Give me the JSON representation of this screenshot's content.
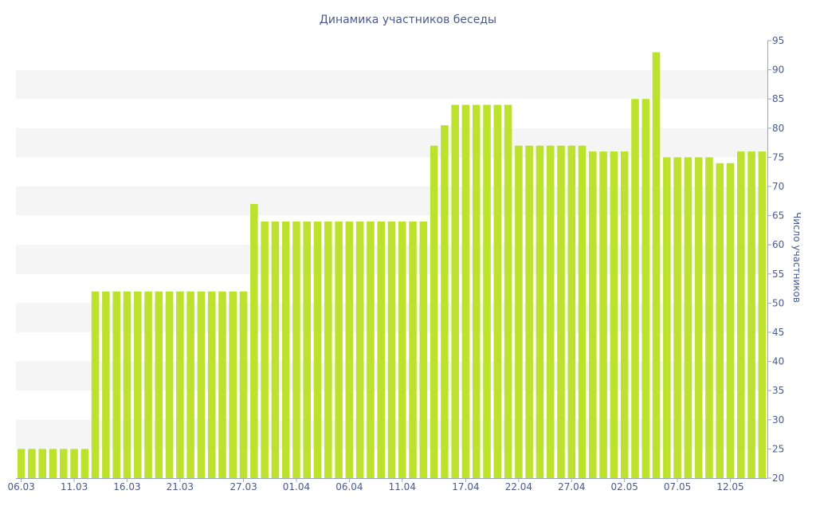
{
  "colors": {
    "bar": "#bde22e",
    "text": "#4a5a8a",
    "band": "#f5f5f5",
    "axis": "#9aa6c8"
  },
  "chart_data": {
    "type": "bar",
    "title": "Динамика участников беседы",
    "xlabel": "",
    "ylabel": "Число участников",
    "ylim": [
      20,
      95
    ],
    "yticks": [
      20,
      25,
      30,
      35,
      40,
      45,
      50,
      55,
      60,
      65,
      70,
      75,
      80,
      85,
      90,
      95
    ],
    "y_axis_position": "right",
    "grid": "alternating-bands",
    "legend": "none",
    "xtick_labels": [
      "06.03",
      "11.03",
      "16.03",
      "21.03",
      "27.03",
      "01.04",
      "06.04",
      "11.04",
      "17.04",
      "22.04",
      "27.04",
      "02.05",
      "07.05",
      "12.05"
    ],
    "xtick_dates": [
      "2024-03-06",
      "2024-03-11",
      "2024-03-16",
      "2024-03-21",
      "2024-03-27",
      "2024-04-01",
      "2024-04-06",
      "2024-04-11",
      "2024-04-17",
      "2024-04-22",
      "2024-04-27",
      "2024-05-02",
      "2024-05-07",
      "2024-05-12"
    ],
    "x": [
      "2024-03-06",
      "2024-03-07",
      "2024-03-08",
      "2024-03-09",
      "2024-03-10",
      "2024-03-11",
      "2024-03-12",
      "2024-03-13",
      "2024-03-14",
      "2024-03-15",
      "2024-03-16",
      "2024-03-17",
      "2024-03-18",
      "2024-03-19",
      "2024-03-20",
      "2024-03-21",
      "2024-03-22",
      "2024-03-23",
      "2024-03-24",
      "2024-03-25",
      "2024-03-26",
      "2024-03-27",
      "2024-03-28",
      "2024-03-29",
      "2024-03-30",
      "2024-03-31",
      "2024-04-01",
      "2024-04-02",
      "2024-04-03",
      "2024-04-04",
      "2024-04-05",
      "2024-04-06",
      "2024-04-07",
      "2024-04-08",
      "2024-04-09",
      "2024-04-10",
      "2024-04-11",
      "2024-04-12",
      "2024-04-13",
      "2024-04-14",
      "2024-04-15",
      "2024-04-16",
      "2024-04-17",
      "2024-04-18",
      "2024-04-19",
      "2024-04-20",
      "2024-04-21",
      "2024-04-22",
      "2024-04-23",
      "2024-04-24",
      "2024-04-25",
      "2024-04-26",
      "2024-04-27",
      "2024-04-28",
      "2024-04-29",
      "2024-04-30",
      "2024-05-01",
      "2024-05-02",
      "2024-05-03",
      "2024-05-04",
      "2024-05-05",
      "2024-05-06",
      "2024-05-07",
      "2024-05-08",
      "2024-05-09",
      "2024-05-10",
      "2024-05-11",
      "2024-05-12",
      "2024-05-13",
      "2024-05-14",
      "2024-05-15"
    ],
    "values": [
      25,
      25,
      25,
      25,
      25,
      25,
      25,
      52,
      52,
      52,
      52,
      52,
      52,
      52,
      52,
      52,
      52,
      52,
      52,
      52,
      52,
      52,
      67,
      64,
      64,
      64,
      64,
      64,
      64,
      64,
      64,
      64,
      64,
      64,
      64,
      64,
      64,
      64,
      64,
      77,
      80.5,
      84,
      84,
      84,
      84,
      84,
      84,
      77,
      77,
      77,
      77,
      77,
      77,
      77,
      76,
      76,
      76,
      76,
      85,
      85,
      93,
      75,
      75,
      75,
      75,
      75,
      74,
      74,
      76,
      76,
      76
    ]
  }
}
